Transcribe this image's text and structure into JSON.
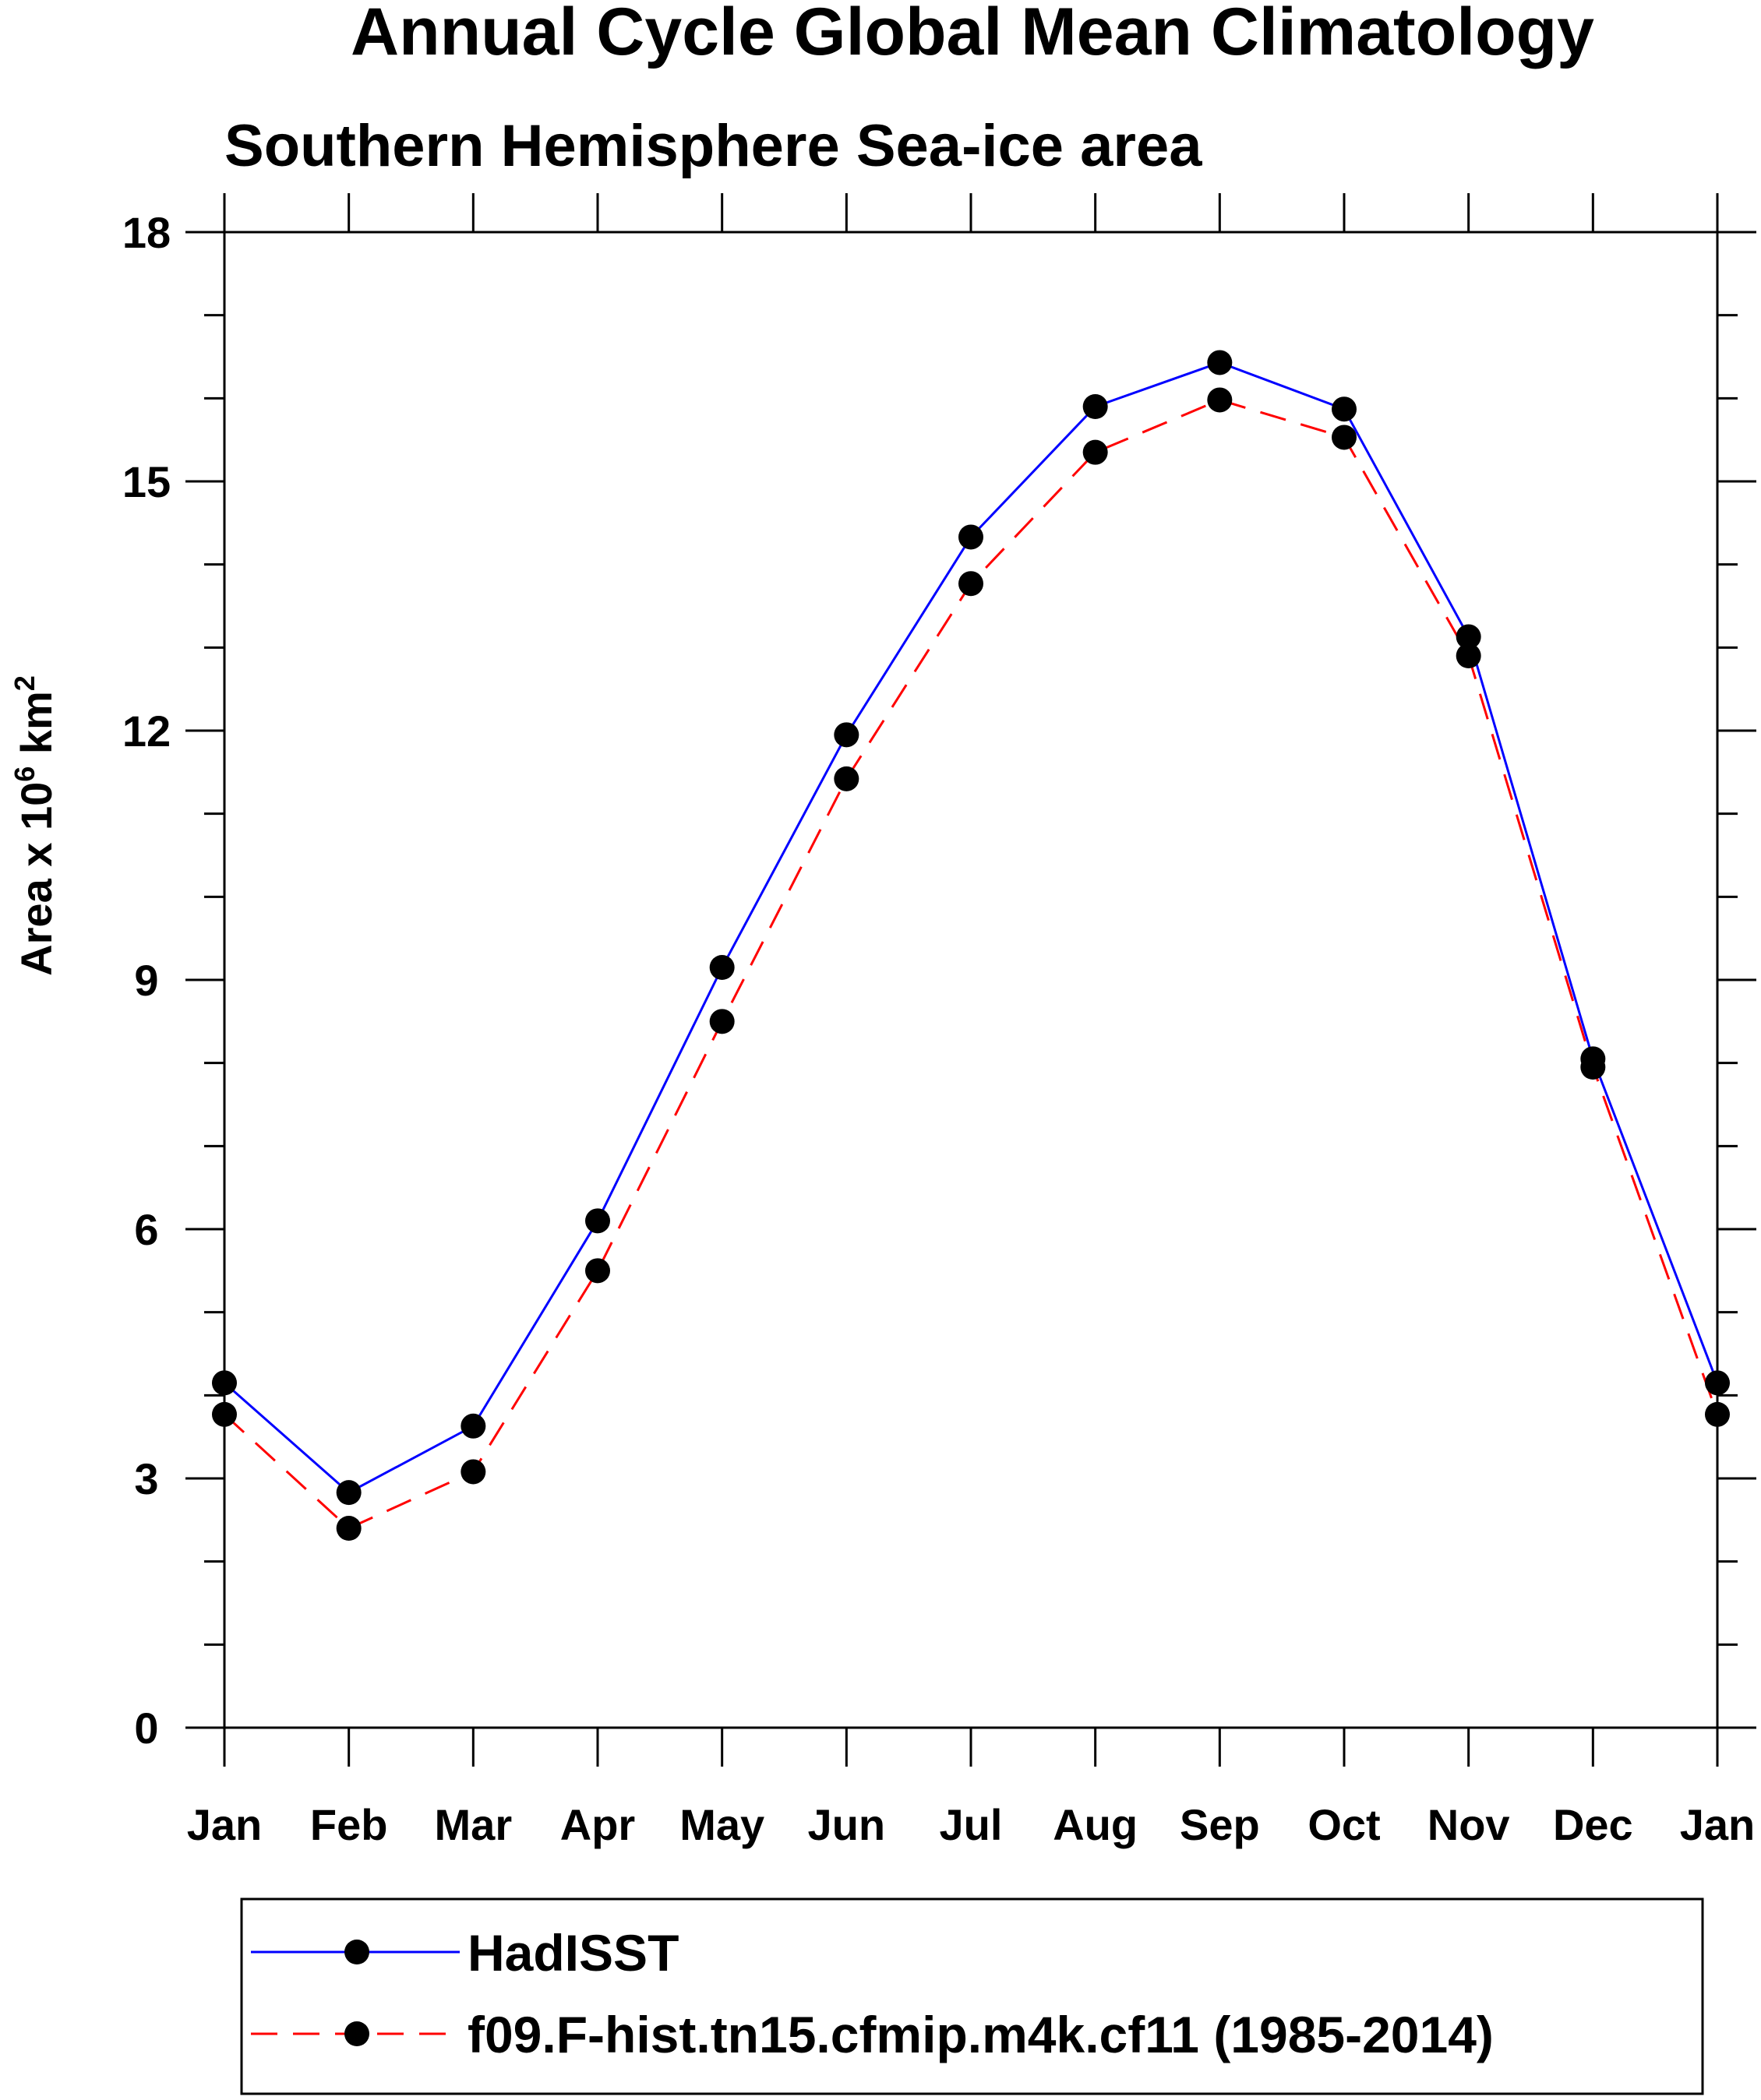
{
  "chart_data": {
    "type": "line",
    "title": "Annual Cycle Global Mean Climatology",
    "subtitle": "Southern Hemisphere Sea-ice area",
    "ylabel": "Area x 10",
    "ylabel_exp1": "6",
    "ylabel_unit": " km",
    "ylabel_exp2": "2",
    "xlabel": "",
    "ylim": [
      0,
      18
    ],
    "yticks": [
      0,
      3,
      6,
      9,
      12,
      15,
      18
    ],
    "categories": [
      "Jan",
      "Feb",
      "Mar",
      "Apr",
      "May",
      "Jun",
      "Jul",
      "Aug",
      "Sep",
      "Oct",
      "Nov",
      "Dec",
      "Jan"
    ],
    "series": [
      {
        "name": "HadISST",
        "color": "#0000ff",
        "dash": "solid",
        "values": [
          4.15,
          2.83,
          3.63,
          6.1,
          9.15,
          11.95,
          14.33,
          15.9,
          16.43,
          15.87,
          13.13,
          8.05,
          4.15
        ]
      },
      {
        "name": "f09.F-hist.tn15.cfmip.m4k.cf11 (1985-2014)",
        "color": "#ff0000",
        "dash": "dashed",
        "values": [
          3.77,
          2.4,
          3.08,
          5.5,
          8.5,
          11.42,
          13.77,
          15.35,
          15.98,
          15.53,
          12.9,
          7.95,
          3.77
        ]
      }
    ],
    "legend_position": "bottom"
  }
}
